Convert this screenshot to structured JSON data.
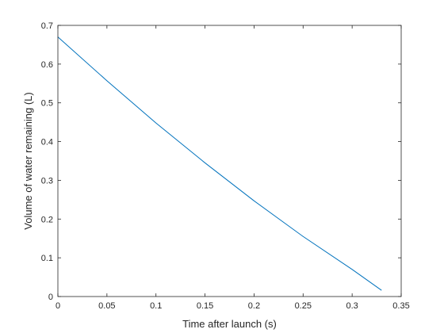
{
  "chart_data": {
    "type": "line",
    "title": "",
    "xlabel": "Time after launch (s)",
    "ylabel": "Volume of water remaining (L)",
    "xlim": [
      0,
      0.35
    ],
    "ylim": [
      0,
      0.7
    ],
    "xticks": [
      "0",
      "0.05",
      "0.1",
      "0.15",
      "0.2",
      "0.25",
      "0.3",
      "0.35"
    ],
    "yticks": [
      "0",
      "0.1",
      "0.2",
      "0.3",
      "0.4",
      "0.5",
      "0.6",
      "0.7"
    ],
    "grid": false,
    "box": true,
    "series": [
      {
        "color": "#0072bd",
        "x": [
          0,
          0.05,
          0.1,
          0.15,
          0.2,
          0.25,
          0.3,
          0.33
        ],
        "y": [
          0.67,
          0.557,
          0.448,
          0.345,
          0.247,
          0.155,
          0.07,
          0.016
        ]
      }
    ]
  }
}
